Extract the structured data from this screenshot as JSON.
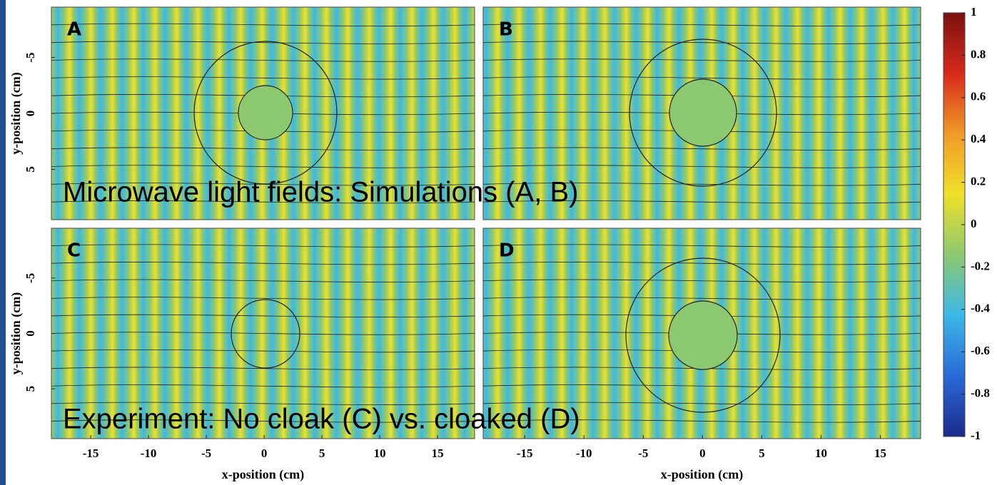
{
  "chart_data": [
    {
      "type": "field-map",
      "panel": "A",
      "ylabel": "y-position (cm)",
      "xlim": [
        -18.4,
        18.2
      ],
      "ylim": [
        -9.5,
        9.5
      ],
      "y_inverted": true,
      "yticks": [
        -5,
        0,
        5
      ]
    },
    {
      "type": "field-map",
      "panel": "B",
      "xlim": [
        -18.5,
        18.4
      ],
      "ylim": [
        -9.5,
        9.5
      ],
      "y_inverted": true
    },
    {
      "type": "field-map",
      "panel": "C",
      "ylabel": "y-position (cm)",
      "xlabel": "x-position (cm)",
      "xlim": [
        -18.4,
        18.2
      ],
      "ylim": [
        -9.5,
        9.5
      ],
      "y_inverted": true,
      "xticks": [
        -15,
        -10,
        -5,
        0,
        5,
        10,
        15
      ],
      "yticks": [
        -5,
        0,
        5
      ]
    },
    {
      "type": "field-map",
      "panel": "D",
      "xlabel": "x-position (cm)",
      "xlim": [
        -18.5,
        18.4
      ],
      "ylim": [
        -9.5,
        9.5
      ],
      "y_inverted": true,
      "xticks": [
        -15,
        -10,
        -5,
        0,
        5,
        10,
        15
      ]
    },
    {
      "type": "colorbar",
      "ylim": [
        -1,
        1
      ],
      "yticks": [
        1,
        0.8,
        0.6,
        0.4,
        0.2,
        0,
        -0.2,
        -0.4,
        -0.6,
        -0.8,
        -1
      ],
      "colors": [
        "#1a2a8c",
        "#2a6ad8",
        "#3cb8e8",
        "#8cc870",
        "#f0e028",
        "#f09a28",
        "#d82a1a",
        "#7a1010"
      ]
    }
  ],
  "annotations": [
    "Microwave light fields: Simulations (A, B)",
    "Experiment: No cloak (C) vs. cloaked (D)"
  ]
}
